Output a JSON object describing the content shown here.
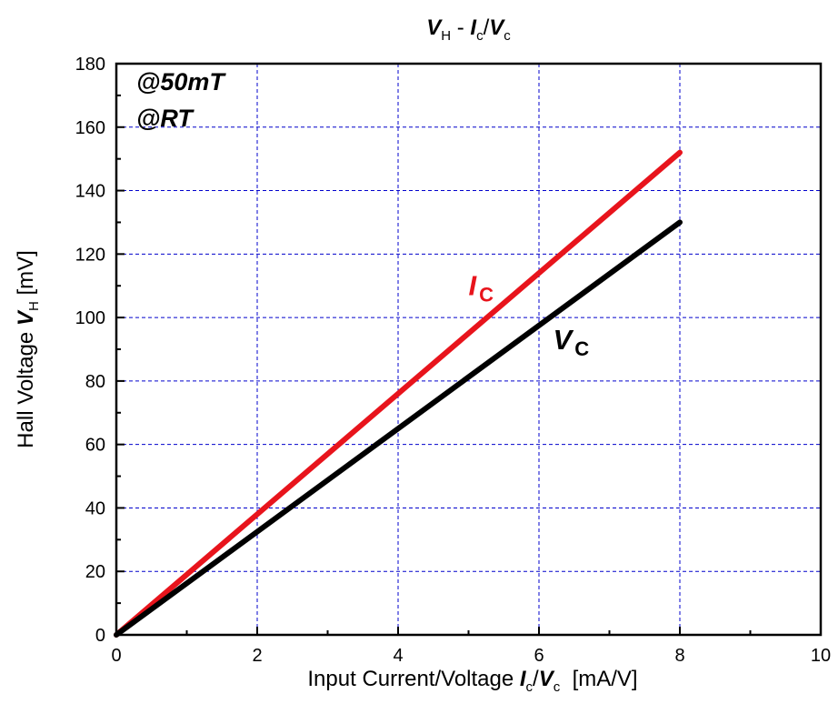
{
  "chart_data": {
    "type": "line",
    "title": {
      "parts": [
        {
          "text": "V",
          "style": "bi"
        },
        {
          "text": "H",
          "style": "sub"
        },
        {
          "text": " - ",
          "style": "normal"
        },
        {
          "text": "I",
          "style": "bi"
        },
        {
          "text": "c",
          "style": "sub"
        },
        {
          "text": "/",
          "style": "normal"
        },
        {
          "text": "V",
          "style": "bi"
        },
        {
          "text": "c",
          "style": "sub"
        }
      ]
    },
    "xlabel": {
      "parts": [
        {
          "text": "Input Current/Voltage ",
          "style": "normal"
        },
        {
          "text": "I",
          "style": "bi"
        },
        {
          "text": "c",
          "style": "sub"
        },
        {
          "text": "/",
          "style": "normal"
        },
        {
          "text": "V",
          "style": "bi"
        },
        {
          "text": "c",
          "style": "sub"
        },
        {
          "text": "  [mA/V]",
          "style": "normal"
        }
      ]
    },
    "ylabel": {
      "parts": [
        {
          "text": "Hall Voltage ",
          "style": "normal"
        },
        {
          "text": "V",
          "style": "bi"
        },
        {
          "text": "H",
          "style": "sub"
        },
        {
          "text": " [mV]",
          "style": "normal"
        }
      ]
    },
    "xlim": [
      0,
      10
    ],
    "ylim": [
      0,
      180
    ],
    "xticks": [
      0,
      2,
      4,
      6,
      8,
      10
    ],
    "yticks": [
      0,
      20,
      40,
      60,
      80,
      100,
      120,
      140,
      160,
      180
    ],
    "grid": true,
    "grid_color": "#0000cc",
    "annotations": [
      "@50mT",
      "@RT"
    ],
    "series": [
      {
        "name": "I",
        "name_sub": "C",
        "color": "#e8141c",
        "x": [
          0,
          8
        ],
        "y": [
          0,
          152
        ],
        "label_at": [
          5,
          107
        ]
      },
      {
        "name": "V",
        "name_sub": "C",
        "color": "#000000",
        "x": [
          0,
          8
        ],
        "y": [
          0,
          130
        ],
        "label_at": [
          6.2,
          90
        ]
      }
    ]
  }
}
